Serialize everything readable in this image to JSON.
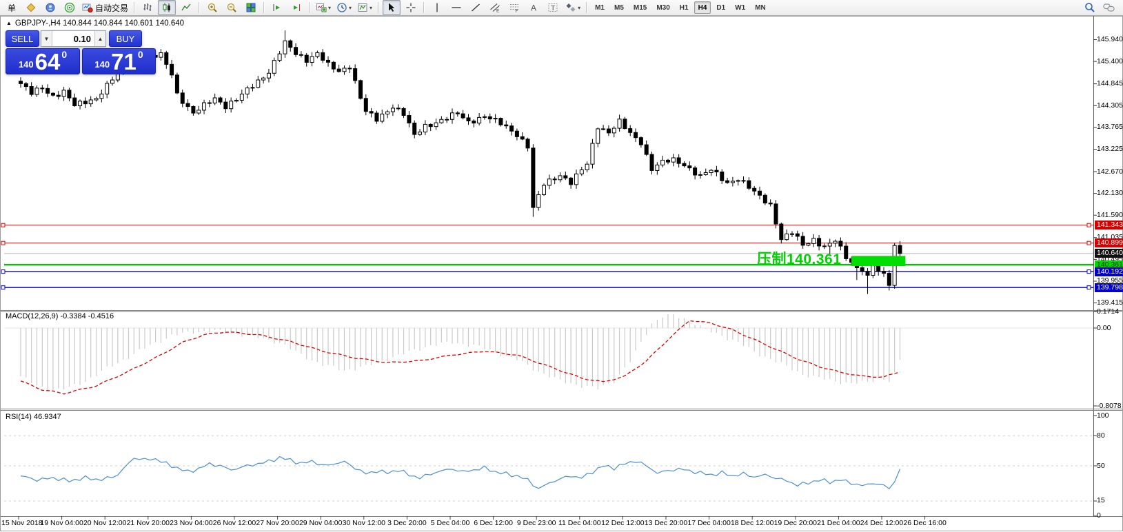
{
  "toolbar": {
    "order_label": "单",
    "autotrade_label": "自动交易",
    "caret_icon": "▾",
    "timeframes": [
      "M1",
      "M5",
      "M15",
      "M30",
      "H1",
      "H4",
      "D1",
      "W1",
      "MN"
    ],
    "active_timeframe": "H4",
    "icons": [
      "new-order",
      "market-watch",
      "community",
      "signals",
      "autotrading",
      "bar-chart",
      "candlestick-chart",
      "line-chart",
      "zoom-in",
      "zoom-out",
      "tile-windows",
      "shift-end",
      "auto-scroll",
      "indicators",
      "periods",
      "templates",
      "cursor",
      "crosshair",
      "vertical-line",
      "horizontal-line",
      "trendline",
      "channel",
      "fibonacci",
      "text",
      "text-label",
      "arrows",
      "search",
      "chat"
    ]
  },
  "symbol_line": {
    "collapse_icon": "▲",
    "text": "GBPJPY-,H4  140.844 140.844 140.601 140.640"
  },
  "trade_panel": {
    "sell_label": "SELL",
    "buy_label": "BUY",
    "volume": "0.10",
    "vol_down_icon": "▼",
    "vol_up_icon": "▲",
    "sell_price_small": "140",
    "sell_price_big": "64",
    "sell_price_sup": "0",
    "buy_price_small": "140",
    "buy_price_big": "71",
    "buy_price_sup": "0"
  },
  "indicators": {
    "macd_label": "MACD(12,26,9) -0.3384 -0.4516",
    "rsi_label": "RSI(14) 46.9347"
  },
  "annotation": {
    "text": "压制140.361",
    "color": "#00d400"
  },
  "price_axis": {
    "ticks": [
      145.94,
      145.4,
      144.845,
      144.305,
      143.765,
      143.225,
      142.67,
      142.13,
      141.59,
      141.035,
      140.495,
      139.955,
      139.415
    ]
  },
  "macd_axis": [
    {
      "text": "0.1714",
      "value": 0.1714
    },
    {
      "text": "0.00",
      "value": 0
    },
    {
      "text": "-0.8078",
      "value": -0.8078
    }
  ],
  "rsi_axis": [
    {
      "text": "100",
      "value": 100,
      "dashed": false
    },
    {
      "text": "80",
      "value": 80,
      "dashed": true
    },
    {
      "text": "50",
      "value": 50,
      "dashed": true
    },
    {
      "text": "15",
      "value": 15,
      "dashed": true
    },
    {
      "text": "0",
      "value": 0,
      "dashed": false
    }
  ],
  "time_axis": [
    "15 Nov 2018",
    "19 Nov 04:00",
    "20 Nov 12:00",
    "21 Nov 20:00",
    "23 Nov 04:00",
    "26 Nov 12:00",
    "27 Nov 20:00",
    "29 Nov 04:00",
    "30 Nov 12:00",
    "3 Dec 20:00",
    "5 Dec 04:00",
    "6 Dec 12:00",
    "9 Dec 23:00",
    "11 Dec 04:00",
    "12 Dec 12:00",
    "13 Dec 20:00",
    "17 Dec 04:00",
    "18 Dec 12:00",
    "19 Dec 20:00",
    "21 Dec 04:00",
    "24 Dec 12:00",
    "26 Dec 16:00"
  ],
  "chart_data": [
    {
      "type": "candlestick",
      "title": "GBPJPY-,H4",
      "last_bar": {
        "open": 140.844,
        "high": 140.844,
        "low": 140.601,
        "close": 140.64
      },
      "bid": 140.64,
      "ask": 140.71,
      "ylim": [
        139.415,
        145.94
      ],
      "bar_count": 164,
      "close_anchors": [
        [
          0,
          144.85
        ],
        [
          2,
          144.6
        ],
        [
          4,
          144.75
        ],
        [
          6,
          144.55
        ],
        [
          8,
          144.65
        ],
        [
          10,
          144.3
        ],
        [
          12,
          144.4
        ],
        [
          14,
          144.5
        ],
        [
          17,
          144.95
        ],
        [
          20,
          145.5
        ],
        [
          22,
          145.35
        ],
        [
          24,
          145.5
        ],
        [
          26,
          145.55
        ],
        [
          28,
          145.1
        ],
        [
          29,
          144.6
        ],
        [
          32,
          144.1
        ],
        [
          34,
          144.3
        ],
        [
          36,
          144.5
        ],
        [
          38,
          144.3
        ],
        [
          40,
          144.45
        ],
        [
          43,
          144.8
        ],
        [
          46,
          145.15
        ],
        [
          49,
          145.85
        ],
        [
          51,
          145.6
        ],
        [
          53,
          145.45
        ],
        [
          55,
          145.6
        ],
        [
          57,
          145.3
        ],
        [
          59,
          145.15
        ],
        [
          61,
          145.3
        ],
        [
          63,
          144.5
        ],
        [
          64,
          144.15
        ],
        [
          66,
          143.95
        ],
        [
          69,
          144.3
        ],
        [
          71,
          144.1
        ],
        [
          73,
          143.55
        ],
        [
          75,
          143.8
        ],
        [
          78,
          143.95
        ],
        [
          81,
          144.1
        ],
        [
          83,
          143.9
        ],
        [
          86,
          144.05
        ],
        [
          89,
          143.85
        ],
        [
          92,
          143.6
        ],
        [
          94,
          143.3
        ],
        [
          95,
          141.75
        ],
        [
          97,
          142.35
        ],
        [
          100,
          142.6
        ],
        [
          102,
          142.4
        ],
        [
          105,
          142.85
        ],
        [
          107,
          143.8
        ],
        [
          109,
          143.65
        ],
        [
          111,
          143.9
        ],
        [
          113,
          143.6
        ],
        [
          115,
          143.4
        ],
        [
          117,
          142.75
        ],
        [
          119,
          142.9
        ],
        [
          121,
          142.95
        ],
        [
          123,
          142.85
        ],
        [
          126,
          142.55
        ],
        [
          128,
          142.7
        ],
        [
          131,
          142.4
        ],
        [
          133,
          142.5
        ],
        [
          136,
          142.15
        ],
        [
          139,
          141.85
        ],
        [
          141,
          141.0
        ],
        [
          143,
          141.15
        ],
        [
          145,
          140.85
        ],
        [
          147,
          141.0
        ],
        [
          149,
          140.8
        ],
        [
          151,
          140.95
        ],
        [
          153,
          140.55
        ],
        [
          155,
          140.3
        ],
        [
          157,
          140.1
        ],
        [
          158,
          140.35
        ],
        [
          159,
          140.2
        ],
        [
          160,
          140.15
        ],
        [
          161,
          139.85
        ],
        [
          162,
          140.84
        ],
        [
          163,
          140.64
        ]
      ],
      "wick_overrides": {
        "high": {
          "20": 0.1,
          "49": 0.15
        },
        "low": {
          "95": 0.12,
          "150": 0.15,
          "155": 0.2,
          "157": 0.42,
          "161": 0.1
        }
      },
      "levels": [
        {
          "price": 141.343,
          "line_color": "#d40000",
          "label_bg": "#d40000",
          "label_fg": "#ffffff",
          "width": 1,
          "handles": true
        },
        {
          "price": 140.899,
          "line_color": "#d40000",
          "label_bg": "#d40000",
          "label_fg": "#ffffff",
          "width": 1,
          "handles": true
        },
        {
          "price": 140.64,
          "line_color": "#b5b5b5",
          "label_bg": "#101010",
          "label_fg": "#ffffff",
          "width": 1,
          "handles": false,
          "role": "bid"
        },
        {
          "price": 140.361,
          "line_color": "#00c400",
          "label_bg": "#00d800",
          "label_fg": "#062406",
          "width": 2.4,
          "handles": false
        },
        {
          "price": 140.192,
          "line_color": "#0000c8",
          "label_bg": "#0000c8",
          "label_fg": "#ffffff",
          "width": 1.4,
          "handles": true
        },
        {
          "price": 139.798,
          "line_color": "#0000c8",
          "label_bg": "#0000c8",
          "label_fg": "#ffffff",
          "width": 1.4,
          "handles": true
        }
      ],
      "highlight_box": {
        "start_index": 154,
        "end_index": 164,
        "top_price": 140.58,
        "bottom_price": 140.33,
        "color": "#00dd00"
      },
      "annotation": {
        "text": "压制140.361",
        "color": "#00d400"
      }
    },
    {
      "type": "macd",
      "params": "12,26,9",
      "current_macd": -0.3384,
      "current_signal": -0.4516,
      "range": [
        -0.8078,
        0.1714
      ],
      "histogram_color": "#c9c9c9",
      "signal_color": "#e00000",
      "histogram_anchors": [
        [
          0,
          -0.5
        ],
        [
          3,
          -0.6
        ],
        [
          6,
          -0.65
        ],
        [
          9,
          -0.62
        ],
        [
          12,
          -0.55
        ],
        [
          16,
          -0.42
        ],
        [
          20,
          -0.3
        ],
        [
          24,
          -0.18
        ],
        [
          28,
          -0.08
        ],
        [
          32,
          -0.04
        ],
        [
          36,
          -0.03
        ],
        [
          40,
          -0.06
        ],
        [
          44,
          -0.1
        ],
        [
          48,
          -0.15
        ],
        [
          52,
          -0.28
        ],
        [
          56,
          -0.38
        ],
        [
          60,
          -0.44
        ],
        [
          64,
          -0.4
        ],
        [
          68,
          -0.32
        ],
        [
          72,
          -0.25
        ],
        [
          76,
          -0.18
        ],
        [
          80,
          -0.15
        ],
        [
          84,
          -0.18
        ],
        [
          88,
          -0.25
        ],
        [
          92,
          -0.33
        ],
        [
          96,
          -0.45
        ],
        [
          100,
          -0.55
        ],
        [
          104,
          -0.6
        ],
        [
          107,
          -0.63
        ],
        [
          110,
          -0.55
        ],
        [
          113,
          -0.35
        ],
        [
          115,
          -0.15
        ],
        [
          117,
          0.05
        ],
        [
          119,
          0.12
        ],
        [
          121,
          0.13
        ],
        [
          123,
          0.1
        ],
        [
          125,
          0.05
        ],
        [
          127,
          -0.02
        ],
        [
          130,
          -0.08
        ],
        [
          133,
          -0.15
        ],
        [
          136,
          -0.25
        ],
        [
          139,
          -0.32
        ],
        [
          142,
          -0.4
        ],
        [
          145,
          -0.48
        ],
        [
          148,
          -0.52
        ],
        [
          151,
          -0.55
        ],
        [
          154,
          -0.58
        ],
        [
          157,
          -0.56
        ],
        [
          159,
          -0.52
        ],
        [
          161,
          -0.55
        ],
        [
          162,
          -0.48
        ],
        [
          163,
          -0.3384
        ]
      ],
      "signal_anchors": [
        [
          0,
          -0.55
        ],
        [
          4,
          -0.64
        ],
        [
          8,
          -0.68
        ],
        [
          14,
          -0.6
        ],
        [
          20,
          -0.45
        ],
        [
          26,
          -0.28
        ],
        [
          30,
          -0.15
        ],
        [
          34,
          -0.07
        ],
        [
          38,
          -0.04
        ],
        [
          44,
          -0.07
        ],
        [
          50,
          -0.14
        ],
        [
          56,
          -0.24
        ],
        [
          62,
          -0.31
        ],
        [
          68,
          -0.36
        ],
        [
          74,
          -0.34
        ],
        [
          80,
          -0.28
        ],
        [
          86,
          -0.24
        ],
        [
          92,
          -0.28
        ],
        [
          98,
          -0.4
        ],
        [
          104,
          -0.52
        ],
        [
          108,
          -0.56
        ],
        [
          112,
          -0.5
        ],
        [
          116,
          -0.34
        ],
        [
          120,
          -0.12
        ],
        [
          124,
          0.08
        ],
        [
          128,
          0.05
        ],
        [
          132,
          -0.02
        ],
        [
          136,
          -0.12
        ],
        [
          140,
          -0.22
        ],
        [
          144,
          -0.32
        ],
        [
          148,
          -0.4
        ],
        [
          152,
          -0.46
        ],
        [
          156,
          -0.5
        ],
        [
          160,
          -0.51
        ],
        [
          163,
          -0.4516
        ]
      ]
    },
    {
      "type": "rsi",
      "period": 14,
      "current": 46.9347,
      "levels": [
        80,
        50,
        15
      ],
      "line_color": "#4b8fd5",
      "anchors": [
        [
          0,
          40
        ],
        [
          3,
          36
        ],
        [
          6,
          38
        ],
        [
          9,
          35
        ],
        [
          12,
          38
        ],
        [
          15,
          36
        ],
        [
          18,
          41
        ],
        [
          21,
          58
        ],
        [
          23,
          56
        ],
        [
          25,
          57
        ],
        [
          27,
          52
        ],
        [
          29,
          48
        ],
        [
          31,
          44
        ],
        [
          33,
          47
        ],
        [
          35,
          52
        ],
        [
          37,
          50
        ],
        [
          39,
          46
        ],
        [
          42,
          50
        ],
        [
          45,
          53
        ],
        [
          48,
          58
        ],
        [
          50,
          56
        ],
        [
          52,
          52
        ],
        [
          54,
          55
        ],
        [
          56,
          50
        ],
        [
          58,
          52
        ],
        [
          60,
          54
        ],
        [
          62,
          48
        ],
        [
          64,
          42
        ],
        [
          66,
          45
        ],
        [
          68,
          43
        ],
        [
          70,
          46
        ],
        [
          72,
          41
        ],
        [
          74,
          38
        ],
        [
          76,
          42
        ],
        [
          78,
          45
        ],
        [
          80,
          47
        ],
        [
          82,
          44
        ],
        [
          84,
          46
        ],
        [
          86,
          48
        ],
        [
          88,
          44
        ],
        [
          90,
          42
        ],
        [
          92,
          40
        ],
        [
          94,
          36
        ],
        [
          96,
          27
        ],
        [
          98,
          33
        ],
        [
          100,
          37
        ],
        [
          102,
          40
        ],
        [
          104,
          38
        ],
        [
          106,
          44
        ],
        [
          108,
          50
        ],
        [
          110,
          48
        ],
        [
          112,
          52
        ],
        [
          114,
          55
        ],
        [
          116,
          50
        ],
        [
          118,
          43
        ],
        [
          120,
          45
        ],
        [
          122,
          47
        ],
        [
          124,
          45
        ],
        [
          126,
          43
        ],
        [
          128,
          41
        ],
        [
          130,
          43
        ],
        [
          132,
          40
        ],
        [
          134,
          42
        ],
        [
          136,
          39
        ],
        [
          138,
          41
        ],
        [
          140,
          38
        ],
        [
          142,
          35
        ],
        [
          144,
          31
        ],
        [
          146,
          33
        ],
        [
          148,
          36
        ],
        [
          150,
          34
        ],
        [
          152,
          36
        ],
        [
          154,
          33
        ],
        [
          156,
          30
        ],
        [
          158,
          33
        ],
        [
          160,
          30
        ],
        [
          161,
          28
        ],
        [
          162,
          34
        ],
        [
          163,
          46.9
        ]
      ]
    }
  ]
}
